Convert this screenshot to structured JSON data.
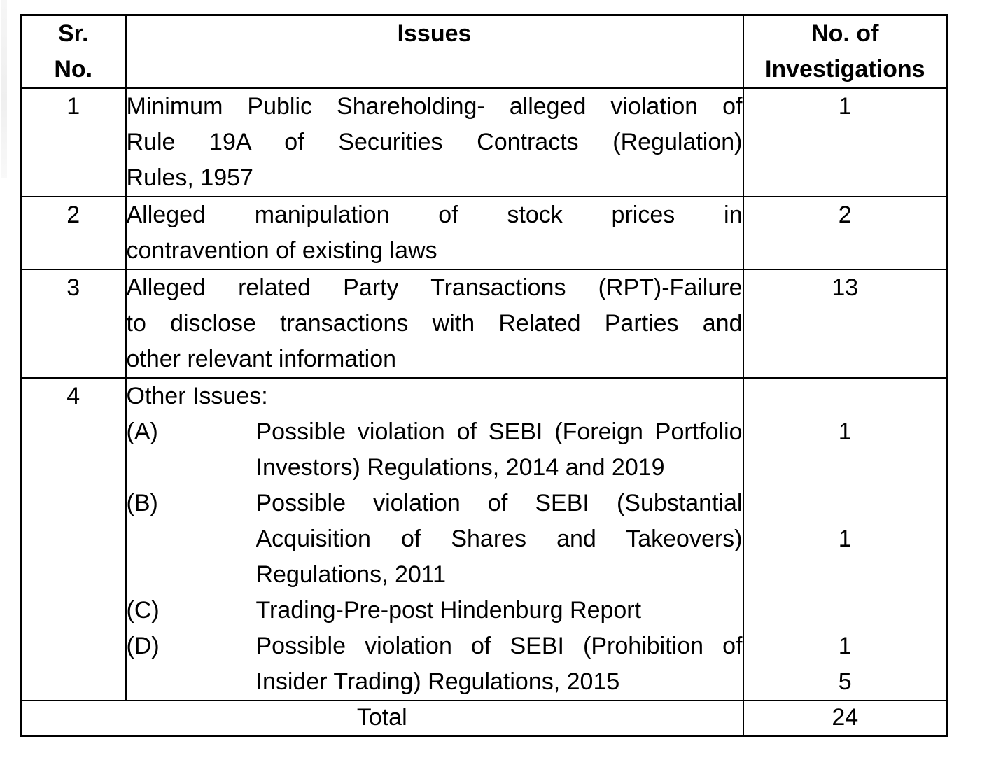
{
  "table": {
    "header": {
      "col1_lines": [
        "Sr.",
        "No."
      ],
      "col2": "Issues",
      "col3_lines": [
        "No. of",
        "Investigations"
      ]
    },
    "rows": [
      {
        "sr": "1",
        "issue_lines": [
          "Minimum Public Shareholding- alleged violation of",
          "Rule 19A of Securities Contracts (Regulation)",
          "Rules, 1957"
        ],
        "count": "1"
      },
      {
        "sr": "2",
        "issue_lines": [
          "Alleged manipulation of stock prices in",
          "contravention of existing laws"
        ],
        "count": "2"
      },
      {
        "sr": "3",
        "issue_lines": [
          "Alleged related Party Transactions (RPT)-Failure",
          "to disclose transactions with Related Parties and",
          "other relevant information"
        ],
        "count": "13"
      },
      {
        "sr": "4",
        "intro": "Other Issues:",
        "sub_items": [
          {
            "label": "(A)",
            "lines": [
              "Possible violation of SEBI (Foreign Portfolio",
              "Investors) Regulations, 2014 and 2019"
            ],
            "count": "1"
          },
          {
            "label": "(B)",
            "lines": [
              "Possible violation of SEBI (Substantial",
              "Acquisition of Shares and Takeovers)",
              "Regulations, 2011"
            ],
            "count": "1"
          },
          {
            "label": "(C)",
            "lines": [
              "Trading-Pre-post Hindenburg Report"
            ],
            "count": ""
          },
          {
            "label": "(D)",
            "lines": [
              "Possible violation of SEBI (Prohibition of",
              "Insider Trading) Regulations, 2015"
            ],
            "count": "1",
            "count2": "5"
          }
        ]
      }
    ],
    "total_row": {
      "label": "Total",
      "value": "24"
    }
  }
}
